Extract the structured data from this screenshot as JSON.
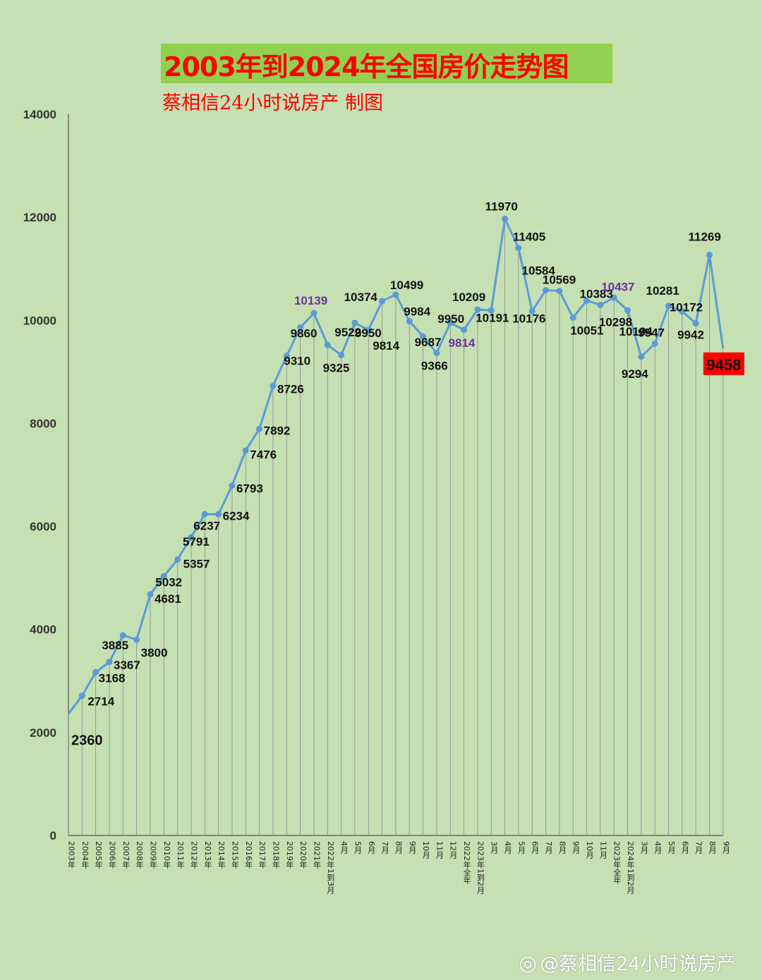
{
  "title": "2003年到2024年全国房价走势图",
  "subtitle": "蔡相信24小时说房产  制图",
  "watermark": "@蔡相信24小时说房产",
  "colors": {
    "background": "#c5e0b3",
    "line": "#5b9bd5",
    "title_bg": "#92d050",
    "title_text": "#ff0000",
    "purple_label": "#7030a0",
    "last_label_bg": "#ff0000"
  },
  "chart_data": {
    "type": "line",
    "title": "2003年到2024年全国房价走势图",
    "xlabel": "",
    "ylabel": "",
    "ylim": [
      0,
      14000
    ],
    "yticks": [
      0,
      2000,
      4000,
      6000,
      8000,
      10000,
      12000,
      14000
    ],
    "grid": "vertical",
    "categories": [
      "2003年",
      "2004年",
      "2005年",
      "2006年",
      "2007年",
      "2008年",
      "2009年",
      "2010年",
      "2011年",
      "2012年",
      "2013年",
      "2014年",
      "2015年",
      "2016年",
      "2017年",
      "2018年",
      "2019年",
      "2020年",
      "2021年",
      "2022年1到3月",
      "4月",
      "5月",
      "6月",
      "7月",
      "8月",
      "9月",
      "10月",
      "11月",
      "12月",
      "2022年全年",
      "2023年1到2月",
      "3月",
      "4月",
      "5月",
      "6月",
      "7月",
      "8月",
      "9月",
      "10月",
      "11月",
      "2023年全年",
      "2024年1到2月",
      "3月",
      "4月",
      "5月",
      "6月",
      "7月",
      "8月",
      "9月"
    ],
    "series": [
      {
        "values": [
          2360,
          2714,
          3168,
          3367,
          3885,
          3800,
          4681,
          5032,
          5357,
          5791,
          6237,
          6234,
          6793,
          7476,
          7892,
          8726,
          9310,
          9860,
          10139,
          9522,
          9325,
          9950,
          9814,
          10374,
          10499,
          9984,
          9687,
          9366,
          9950,
          9814,
          10209,
          10191,
          11970,
          11405,
          10176,
          10584,
          10569,
          10051,
          10383,
          10298,
          10437,
          10194,
          9294,
          9547,
          10281,
          10172,
          9942,
          11269,
          9458
        ]
      }
    ],
    "highlighted_labels": [
      "10139",
      "9814",
      "10437"
    ],
    "boxed_label": "9458"
  }
}
